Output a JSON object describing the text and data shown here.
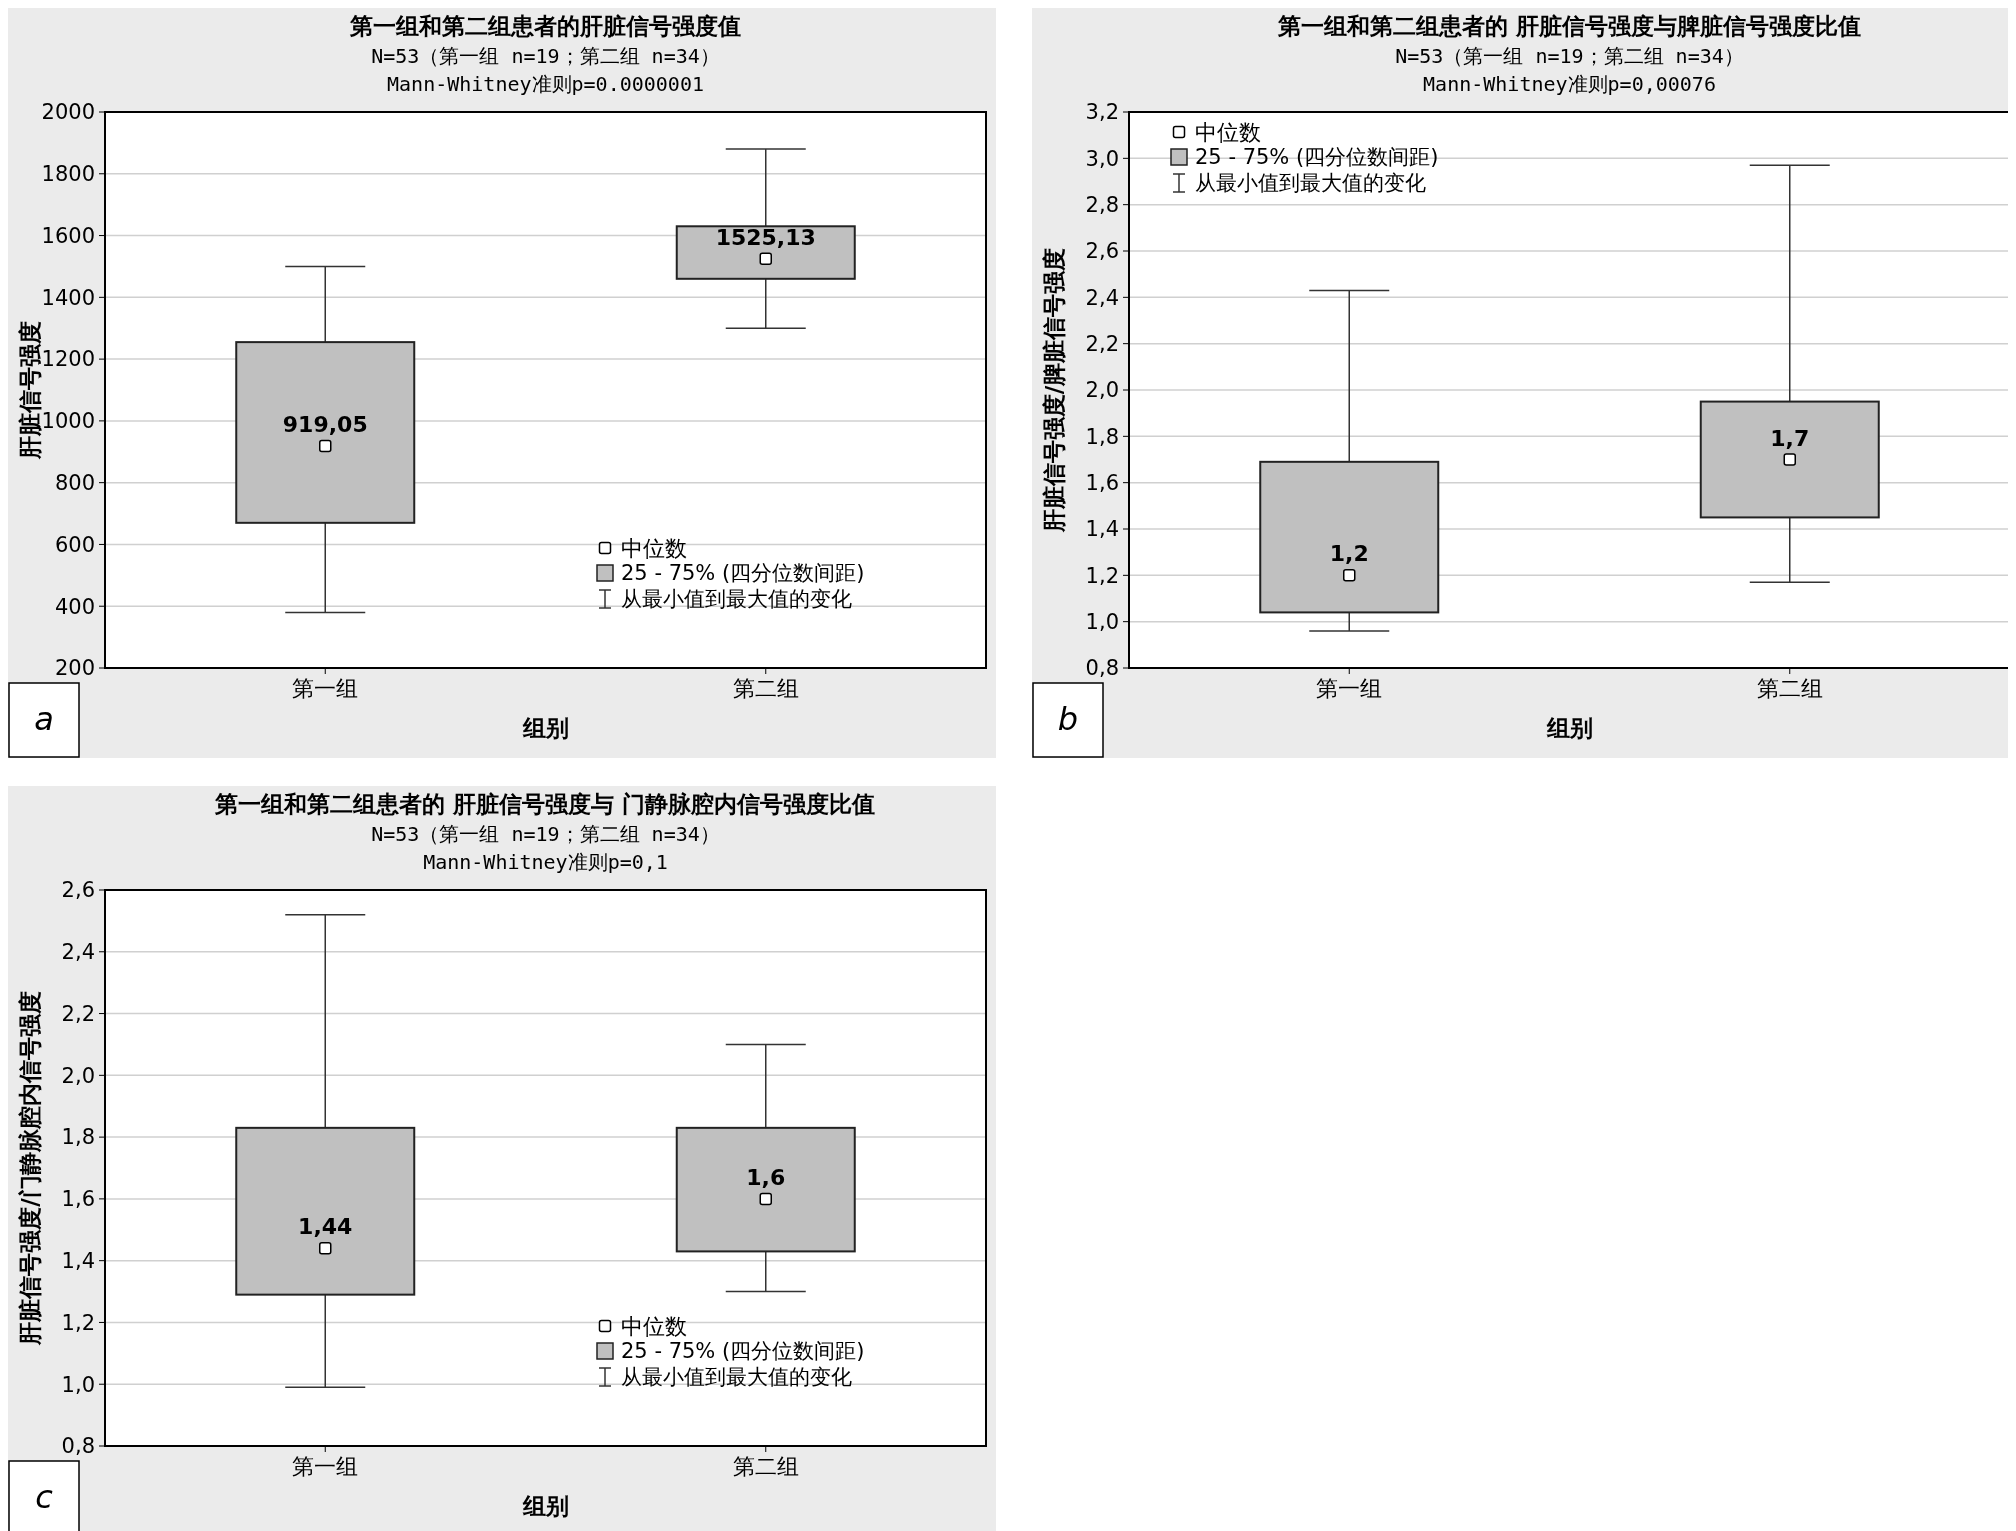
{
  "chart_data": [
    {
      "type": "box",
      "title": "第一组和第二组患者的肝脏信号强度值",
      "subtitle": "N=53（第一组 n=19；第二组 n=34）\nMann-Whitney准则p=0.0000001",
      "xlabel": "组别",
      "ylabel": "肝脏信号强度",
      "categories": [
        "第一组",
        "第二组"
      ],
      "series": [
        {
          "name": "25 - 75% (四分位数间距)",
          "color": "#c0c0c0",
          "boxes": [
            {
              "low": 380,
              "q1": 670,
              "median": 919.05,
              "q3": 1255,
              "high": 1500
            },
            {
              "low": 1300,
              "q1": 1460,
              "median": 1525.13,
              "q3": 1630,
              "high": 1880
            }
          ],
          "value_labels": [
            "919,05",
            "1525,13"
          ]
        }
      ],
      "ylim": [
        200,
        2000
      ],
      "yticks": [
        200,
        400,
        600,
        800,
        1000,
        1200,
        1400,
        1600,
        1800,
        2000
      ],
      "grid": "y",
      "legend": "bottom right",
      "marker": "square",
      "annotations": [
        "a",
        "中位数",
        "从最小值到最大值的变化"
      ]
    },
    {
      "type": "box",
      "title": "第一组和第二组患者的 肝脏信号强度与脾脏信号强度比值",
      "subtitle": "N=53（第一组 n=19；第二组 n=34）\nMann-Whitney准则p=0,00076",
      "xlabel": "组别",
      "ylabel": "肝脏信号强度/脾脏信号强度",
      "categories": [
        "第一组",
        "第二组"
      ],
      "series": [
        {
          "name": "25 - 75% (四分位数间距)",
          "color": "#c0c0c0",
          "boxes": [
            {
              "low": 0.96,
              "q1": 1.04,
              "median": 1.2,
              "q3": 1.69,
              "high": 2.43
            },
            {
              "low": 1.17,
              "q1": 1.45,
              "median": 1.7,
              "q3": 1.95,
              "high": 2.97
            }
          ],
          "value_labels": [
            "1,2",
            "1,7"
          ]
        }
      ],
      "ylim": [
        0.8,
        3.2
      ],
      "yticks": [
        {
          "value": 0.8,
          "label": "0,8"
        },
        {
          "value": 1,
          "label": "1,0"
        },
        {
          "value": 1.2,
          "label": "1,2"
        },
        {
          "value": 1.4,
          "label": "1,4"
        },
        {
          "value": 1.6,
          "label": "1,6"
        },
        {
          "value": 1.8,
          "label": "1,8"
        },
        {
          "value": 2,
          "label": "2,0"
        },
        {
          "value": 2.2,
          "label": "2,2"
        },
        {
          "value": 2.4,
          "label": "2,4"
        },
        {
          "value": 2.6,
          "label": "2,6"
        },
        {
          "value": 2.8,
          "label": "2,8"
        },
        {
          "value": 3,
          "label": "3,0"
        },
        {
          "value": 3.2,
          "label": "3,2"
        }
      ],
      "grid": "y",
      "legend": "top left",
      "marker": "square",
      "annotations": [
        "b",
        "中位数",
        "从最小值到最大值的变化"
      ]
    },
    {
      "type": "box",
      "title": "第一组和第二组患者的 肝脏信号强度与 门静脉腔内信号强度比值",
      "subtitle": "N=53（第一组 n=19；第二组 n=34）\nMann-Whitney准则p=0,1",
      "xlabel": "组别",
      "ylabel": "肝脏信号强度/门静脉腔内信号强度",
      "categories": [
        "第一组",
        "第二组"
      ],
      "series": [
        {
          "name": "25 - 75% (四分位数间距)",
          "color": "#c0c0c0",
          "boxes": [
            {
              "low": 0.99,
              "q1": 1.29,
              "median": 1.44,
              "q3": 1.83,
              "high": 2.52
            },
            {
              "low": 1.3,
              "q1": 1.43,
              "median": 1.6,
              "q3": 1.83,
              "high": 2.1
            }
          ],
          "value_labels": [
            "1,44",
            "1,6"
          ]
        }
      ],
      "ylim": [
        0.8,
        2.6
      ],
      "yticks": [
        {
          "value": 0.8,
          "label": "0,8"
        },
        {
          "value": 1,
          "label": "1,0"
        },
        {
          "value": 1.2,
          "label": "1,2"
        },
        {
          "value": 1.4,
          "label": "1,4"
        },
        {
          "value": 1.6,
          "label": "1,6"
        },
        {
          "value": 1.8,
          "label": "1,8"
        },
        {
          "value": 2,
          "label": "2,0"
        },
        {
          "value": 2.2,
          "label": "2,2"
        },
        {
          "value": 2.4,
          "label": "2,4"
        },
        {
          "value": 2.6,
          "label": "2,6"
        }
      ],
      "grid": "y",
      "legend": "bottom right",
      "marker": "square",
      "annotations": [
        "c",
        "中位数",
        "从最小值到最大值的变化"
      ]
    }
  ]
}
